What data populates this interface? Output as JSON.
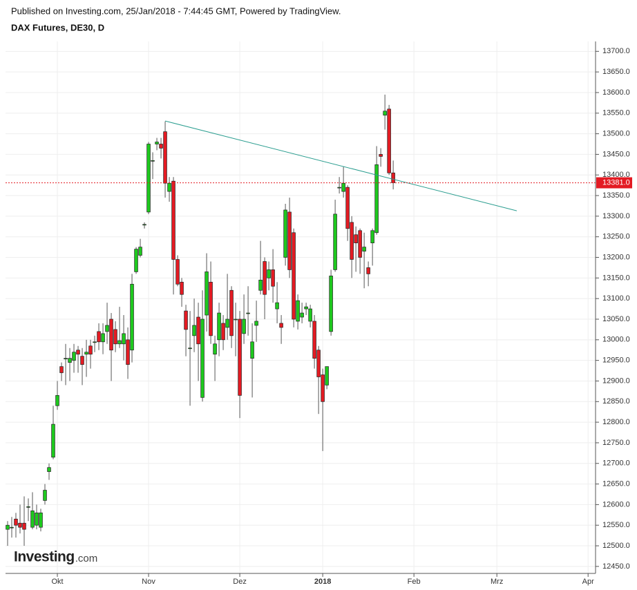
{
  "header": "Published on Investing.com, 25/Jan/2018 - 7:44:45 GMT, Powered by TradingView.",
  "logo_brand": "Investing",
  "logo_suffix": ".com",
  "chart_data": {
    "type": "candlestick",
    "title": "DAX Futures, DE30, D",
    "x": [
      0,
      1,
      2,
      3,
      4,
      5,
      6,
      7,
      8,
      9,
      10,
      11,
      12,
      13,
      14,
      15,
      16,
      17,
      18,
      19,
      20,
      21,
      22,
      23,
      24,
      25,
      26,
      27,
      28,
      29,
      30,
      31,
      32,
      33,
      34,
      35,
      36,
      37,
      38,
      39,
      40,
      41,
      42,
      43,
      44,
      45,
      46,
      47,
      48,
      49,
      50,
      51,
      52,
      53,
      54,
      55,
      56,
      57,
      58,
      59,
      60,
      61,
      62,
      63,
      64,
      65,
      66,
      67,
      68,
      69,
      70,
      71,
      72,
      73,
      74,
      75,
      76,
      77,
      78,
      79,
      80,
      81,
      82,
      83,
      84,
      85,
      86,
      87,
      88,
      89,
      90,
      91,
      92,
      93
    ],
    "open": [
      12540,
      12545,
      12565,
      12555,
      12555,
      12595,
      12545,
      12550,
      12545,
      12610,
      12680,
      12715,
      12840,
      12935,
      12955,
      12945,
      12950,
      12975,
      12960,
      12965,
      12985,
      12995,
      13020,
      12995,
      13020,
      13050,
      13025,
      12990,
      12990,
      13000,
      12975,
      13165,
      13205,
      13280,
      13310,
      13435,
      13475,
      13475,
      13505,
      13360,
      13385,
      13195,
      13140,
      13070,
      12980,
      13010,
      13055,
      12860,
      13060,
      13140,
      12965,
      13000,
      13040,
      13030,
      13120,
      13050,
      13050,
      13015,
      13065,
      12955,
      13035,
      13120,
      13190,
      13150,
      13170,
      13075,
      13040,
      13200,
      13310,
      13260,
      13045,
      13055,
      13075,
      13045,
      13045,
      12975,
      12915,
      12890,
      13020,
      13170,
      13370,
      13360,
      13370,
      13285,
      13255,
      13265,
      13215,
      13175,
      13235,
      13260,
      13450,
      13545,
      13560,
      13405
    ],
    "high": [
      12560,
      12570,
      12580,
      12600,
      12620,
      12615,
      12630,
      12600,
      12590,
      12650,
      12700,
      12840,
      12900,
      12945,
      12990,
      12980,
      12990,
      12985,
      12980,
      13000,
      13000,
      13010,
      13040,
      13040,
      13090,
      13065,
      13045,
      13080,
      13060,
      13030,
      13160,
      13225,
      13245,
      13285,
      13480,
      13455,
      13490,
      13490,
      13530,
      13395,
      13395,
      13205,
      13150,
      13085,
      13070,
      13100,
      13090,
      13120,
      13210,
      13190,
      13010,
      13090,
      13060,
      13160,
      13130,
      13090,
      13070,
      13110,
      13130,
      13040,
      13095,
      13240,
      13200,
      13190,
      13220,
      13140,
      13060,
      13330,
      13345,
      13270,
      13110,
      13090,
      13090,
      13085,
      13060,
      12985,
      12930,
      12935,
      13170,
      13340,
      13395,
      13420,
      13375,
      13300,
      13275,
      13270,
      13260,
      13190,
      13270,
      13470,
      13465,
      13595,
      13570,
      13435
    ],
    "low": [
      12500,
      12520,
      12520,
      12530,
      12500,
      12560,
      12540,
      12540,
      12535,
      12600,
      12660,
      12710,
      12830,
      12900,
      12890,
      12900,
      12920,
      12920,
      12890,
      12910,
      12930,
      12970,
      12975,
      12965,
      12990,
      12900,
      12970,
      12980,
      12950,
      12905,
      12945,
      13160,
      13200,
      13270,
      13305,
      13390,
      13460,
      13440,
      13345,
      13335,
      13110,
      13130,
      13080,
      12960,
      12840,
      12970,
      12900,
      12850,
      13020,
      12990,
      12900,
      12960,
      12975,
      13000,
      12980,
      12960,
      12810,
      12990,
      13010,
      12860,
      12995,
      13110,
      13050,
      13120,
      13090,
      13040,
      12990,
      13180,
      13150,
      13030,
      13025,
      13040,
      13060,
      13030,
      12930,
      12820,
      12730,
      12880,
      13010,
      13165,
      13355,
      13345,
      13240,
      13150,
      13165,
      13160,
      13125,
      13130,
      13180,
      13255,
      13420,
      13510,
      13400,
      13365
    ],
    "close": [
      12550,
      12545,
      12550,
      12545,
      12540,
      12595,
      12585,
      12580,
      12580,
      12635,
      12690,
      12795,
      12865,
      12920,
      12955,
      12955,
      12970,
      12965,
      12940,
      12970,
      12965,
      12995,
      12995,
      13015,
      13035,
      12975,
      12990,
      12998,
      13015,
      12940,
      13135,
      13220,
      13225,
      13280,
      13475,
      13435,
      13480,
      13465,
      13380,
      13380,
      13195,
      13135,
      13110,
      13025,
      12980,
      13035,
      12990,
      13050,
      13165,
      13010,
      12990,
      13065,
      13000,
      13050,
      13010,
      13050,
      12865,
      13050,
      13065,
      12995,
      13045,
      13145,
      13110,
      13170,
      13130,
      13090,
      13030,
      13315,
      13170,
      13050,
      13095,
      13065,
      13080,
      13075,
      12955,
      12910,
      12850,
      12935,
      13155,
      13305,
      13370,
      13380,
      13270,
      13195,
      13235,
      13200,
      13225,
      13160,
      13265,
      13425,
      13445,
      13555,
      13405,
      13381
    ],
    "up_color": "#1ec81e",
    "down_color": "#e31b23",
    "trendline": {
      "x": [
        38,
        122.8
      ],
      "values": [
        13531,
        13313
      ],
      "color": "#2a9d8f"
    },
    "last_price": {
      "value": 13381,
      "label": "13381.0",
      "color": "#e31b23"
    },
    "xlim": [
      -0.5,
      141.8
    ],
    "xticks": [
      {
        "value": 12,
        "label": "Okt"
      },
      {
        "value": 34,
        "label": "Nov"
      },
      {
        "value": 56,
        "label": "Dez"
      },
      {
        "value": 76,
        "label": "2018"
      },
      {
        "value": 98,
        "label": "Feb"
      },
      {
        "value": 118,
        "label": "Mrz"
      },
      {
        "value": 140,
        "label": "Apr"
      }
    ],
    "ylim": [
      12433,
      13724
    ],
    "yticks": [
      {
        "value": 12450,
        "label": "12450.0"
      },
      {
        "value": 12500,
        "label": "12500.0"
      },
      {
        "value": 12550,
        "label": "12550.0"
      },
      {
        "value": 12600,
        "label": "12600.0"
      },
      {
        "value": 12650,
        "label": "12650.0"
      },
      {
        "value": 12700,
        "label": "12700.0"
      },
      {
        "value": 12750,
        "label": "12750.0"
      },
      {
        "value": 12800,
        "label": "12800.0"
      },
      {
        "value": 12850,
        "label": "12850.0"
      },
      {
        "value": 12900,
        "label": "12900.0"
      },
      {
        "value": 12950,
        "label": "12950.0"
      },
      {
        "value": 13000,
        "label": "13000.0"
      },
      {
        "value": 13050,
        "label": "13050.0"
      },
      {
        "value": 13100,
        "label": "13100.0"
      },
      {
        "value": 13150,
        "label": "13150.0"
      },
      {
        "value": 13200,
        "label": "13200.0"
      },
      {
        "value": 13250,
        "label": "13250.0"
      },
      {
        "value": 13300,
        "label": "13300.0"
      },
      {
        "value": 13350,
        "label": "13350.0"
      },
      {
        "value": 13400,
        "label": "13400.0"
      },
      {
        "value": 13450,
        "label": "13450.0"
      },
      {
        "value": 13500,
        "label": "13500.0"
      },
      {
        "value": 13550,
        "label": "13550.0"
      },
      {
        "value": 13600,
        "label": "13600.0"
      },
      {
        "value": 13650,
        "label": "13650.0"
      },
      {
        "value": 13700,
        "label": "13700.0"
      }
    ],
    "grid": true
  }
}
